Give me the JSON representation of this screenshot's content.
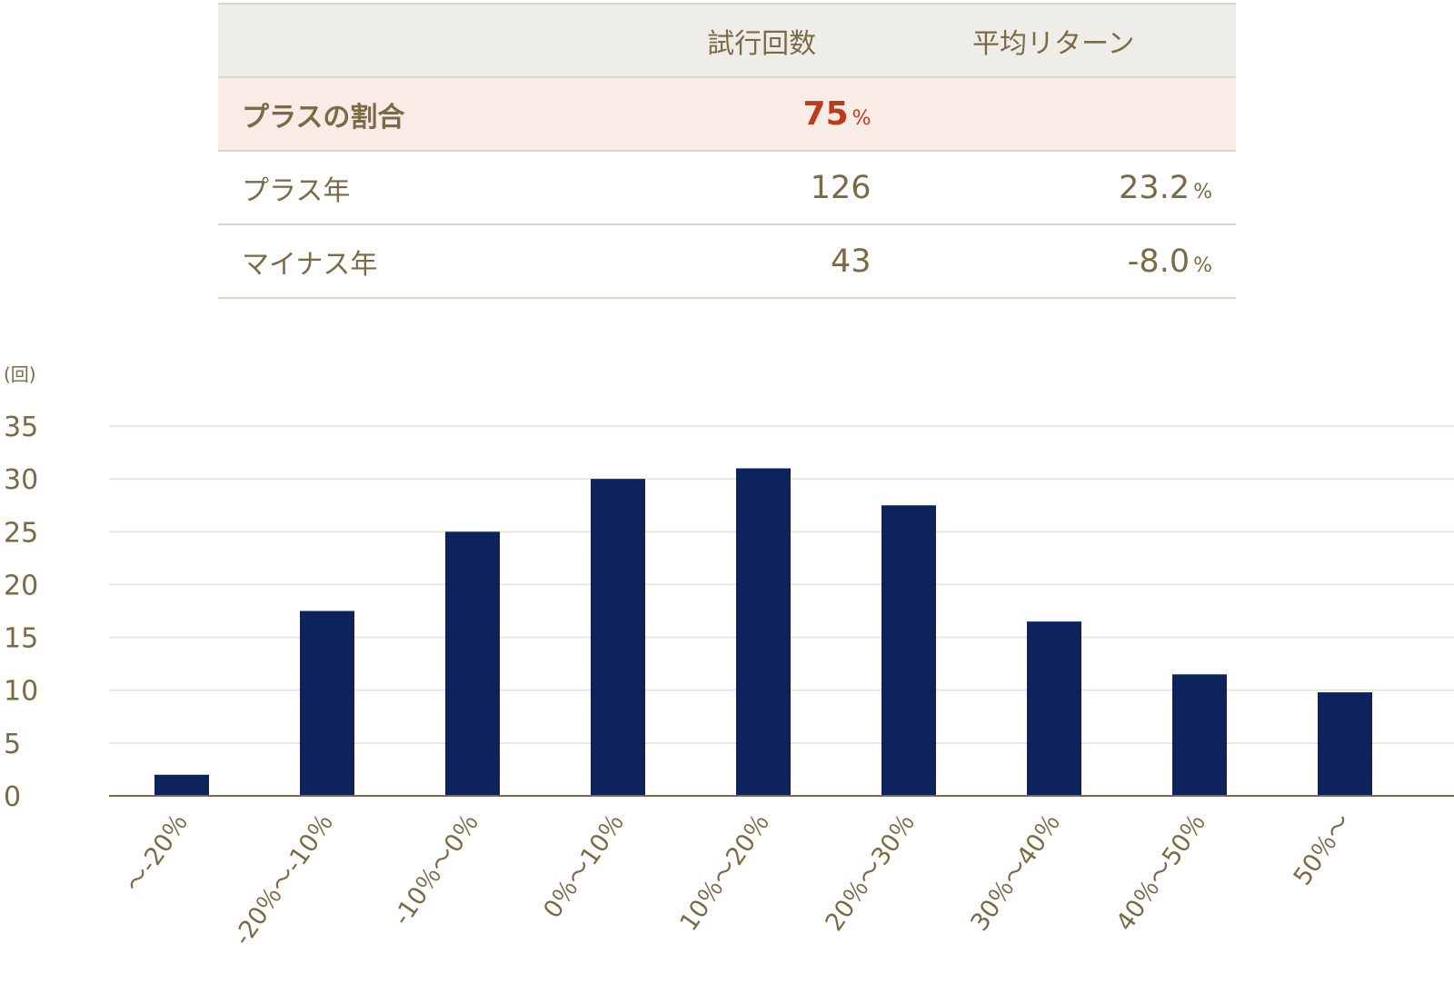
{
  "table": {
    "headers": [
      "",
      "試行回数",
      "平均リターン"
    ],
    "highlight": {
      "label": "プラスの割合",
      "value": "75",
      "unit": "%"
    },
    "rows": [
      {
        "label": "プラス年",
        "count": "126",
        "avg": "23.2",
        "unit": "%"
      },
      {
        "label": "マイナス年",
        "count": "43",
        "avg": "-8.0",
        "unit": "%"
      }
    ]
  },
  "chart_data": {
    "type": "bar",
    "ylabel": "(回)",
    "ylim": [
      0,
      35
    ],
    "yticks": [
      0,
      5,
      10,
      15,
      20,
      25,
      30,
      35
    ],
    "grid": true,
    "categories": [
      "～-20％",
      "-20％～-10％",
      "-10％～0％",
      "0％～10％",
      "10％～20％",
      "20％～30％",
      "30％～40％",
      "40％～50％",
      "50％～"
    ],
    "values": [
      2,
      17.5,
      25,
      30,
      31,
      27.5,
      16.5,
      11.5,
      9.8
    ],
    "colors": {
      "bar": "#0d235c",
      "grid": "#e9e6dc",
      "axis": "#7a6a45",
      "text": "#7a6a45"
    }
  }
}
